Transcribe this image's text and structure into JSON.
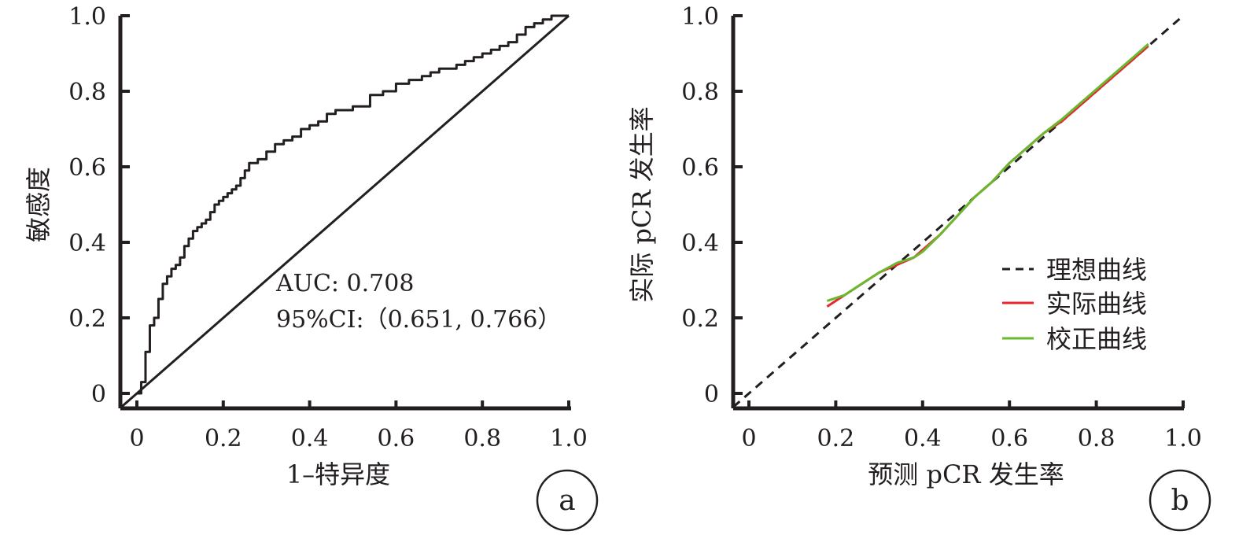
{
  "chart_data": [
    {
      "panel_label": "a",
      "type": "line",
      "xlabel": "1–特异度",
      "ylabel": "敏感度",
      "xlim": [
        0,
        1
      ],
      "ylim": [
        0,
        1
      ],
      "x_ticks": [
        "0",
        "0.2",
        "0.4",
        "0.6",
        "0.8",
        "1.0"
      ],
      "y_ticks": [
        "0",
        "0.2",
        "0.4",
        "0.6",
        "0.8",
        "1.0"
      ],
      "annotations": [
        "AUC: 0.708",
        "95%CI:（0.651, 0.766）"
      ],
      "colors": {
        "roc": "#231f20",
        "diagonal": "#231f20"
      },
      "series": [
        {
          "style": "step",
          "x": [
            0,
            0.01,
            0.02,
            0.02,
            0.03,
            0.03,
            0.04,
            0.05,
            0.05,
            0.06,
            0.06,
            0.07,
            0.08,
            0.09,
            0.1,
            0.11,
            0.12,
            0.13,
            0.14,
            0.15,
            0.16,
            0.17,
            0.18,
            0.19,
            0.2,
            0.21,
            0.22,
            0.23,
            0.24,
            0.25,
            0.26,
            0.27,
            0.28,
            0.3,
            0.32,
            0.34,
            0.36,
            0.38,
            0.4,
            0.42,
            0.44,
            0.46,
            0.5,
            0.54,
            0.57,
            0.6,
            0.63,
            0.66,
            0.68,
            0.7,
            0.72,
            0.74,
            0.76,
            0.78,
            0.8,
            0.82,
            0.84,
            0.86,
            0.88,
            0.9,
            0.92,
            0.94,
            0.96,
            1.0
          ],
          "y": [
            0,
            0.03,
            0.07,
            0.11,
            0.15,
            0.18,
            0.2,
            0.23,
            0.25,
            0.27,
            0.29,
            0.31,
            0.33,
            0.34,
            0.36,
            0.39,
            0.41,
            0.43,
            0.44,
            0.45,
            0.46,
            0.48,
            0.5,
            0.51,
            0.52,
            0.53,
            0.54,
            0.55,
            0.57,
            0.59,
            0.61,
            0.61,
            0.62,
            0.64,
            0.66,
            0.67,
            0.68,
            0.7,
            0.71,
            0.72,
            0.74,
            0.75,
            0.76,
            0.79,
            0.8,
            0.82,
            0.83,
            0.84,
            0.85,
            0.86,
            0.86,
            0.87,
            0.88,
            0.89,
            0.9,
            0.91,
            0.92,
            0.93,
            0.95,
            0.97,
            0.98,
            0.99,
            1.0,
            1.0
          ]
        },
        {
          "style": "diagonal",
          "x": [
            0,
            1
          ],
          "y": [
            0,
            1
          ]
        }
      ]
    },
    {
      "panel_label": "b",
      "type": "line",
      "xlabel": "预测 pCR 发生率",
      "ylabel": "实际 pCR 发生率",
      "xlim": [
        0,
        1
      ],
      "ylim": [
        0,
        1
      ],
      "x_ticks": [
        "0",
        "0.2",
        "0.4",
        "0.6",
        "0.8",
        "1.0"
      ],
      "y_ticks": [
        "0",
        "0.2",
        "0.4",
        "0.6",
        "0.8",
        "1.0"
      ],
      "legend_position": "right",
      "series": [
        {
          "name": "理想曲线",
          "color": "#231f20",
          "dash": true,
          "x": [
            0,
            1
          ],
          "y": [
            0,
            1
          ]
        },
        {
          "name": "实际曲线",
          "color": "#e8262d",
          "x": [
            0.18,
            0.22,
            0.26,
            0.3,
            0.34,
            0.38,
            0.4,
            0.44,
            0.48,
            0.52,
            0.56,
            0.6,
            0.64,
            0.68,
            0.72,
            0.76,
            0.8,
            0.84,
            0.88,
            0.92
          ],
          "y": [
            0.23,
            0.26,
            0.29,
            0.32,
            0.34,
            0.36,
            0.38,
            0.42,
            0.47,
            0.52,
            0.56,
            0.61,
            0.65,
            0.69,
            0.72,
            0.76,
            0.8,
            0.84,
            0.88,
            0.92
          ]
        },
        {
          "name": "校正曲线",
          "color": "#69b92f",
          "x": [
            0.18,
            0.22,
            0.26,
            0.3,
            0.34,
            0.38,
            0.4,
            0.44,
            0.48,
            0.52,
            0.56,
            0.6,
            0.64,
            0.68,
            0.72,
            0.76,
            0.8,
            0.84,
            0.88,
            0.92
          ],
          "y": [
            0.245,
            0.26,
            0.29,
            0.32,
            0.345,
            0.36,
            0.375,
            0.42,
            0.47,
            0.52,
            0.56,
            0.61,
            0.65,
            0.69,
            0.725,
            0.765,
            0.805,
            0.845,
            0.885,
            0.925
          ]
        }
      ]
    }
  ]
}
